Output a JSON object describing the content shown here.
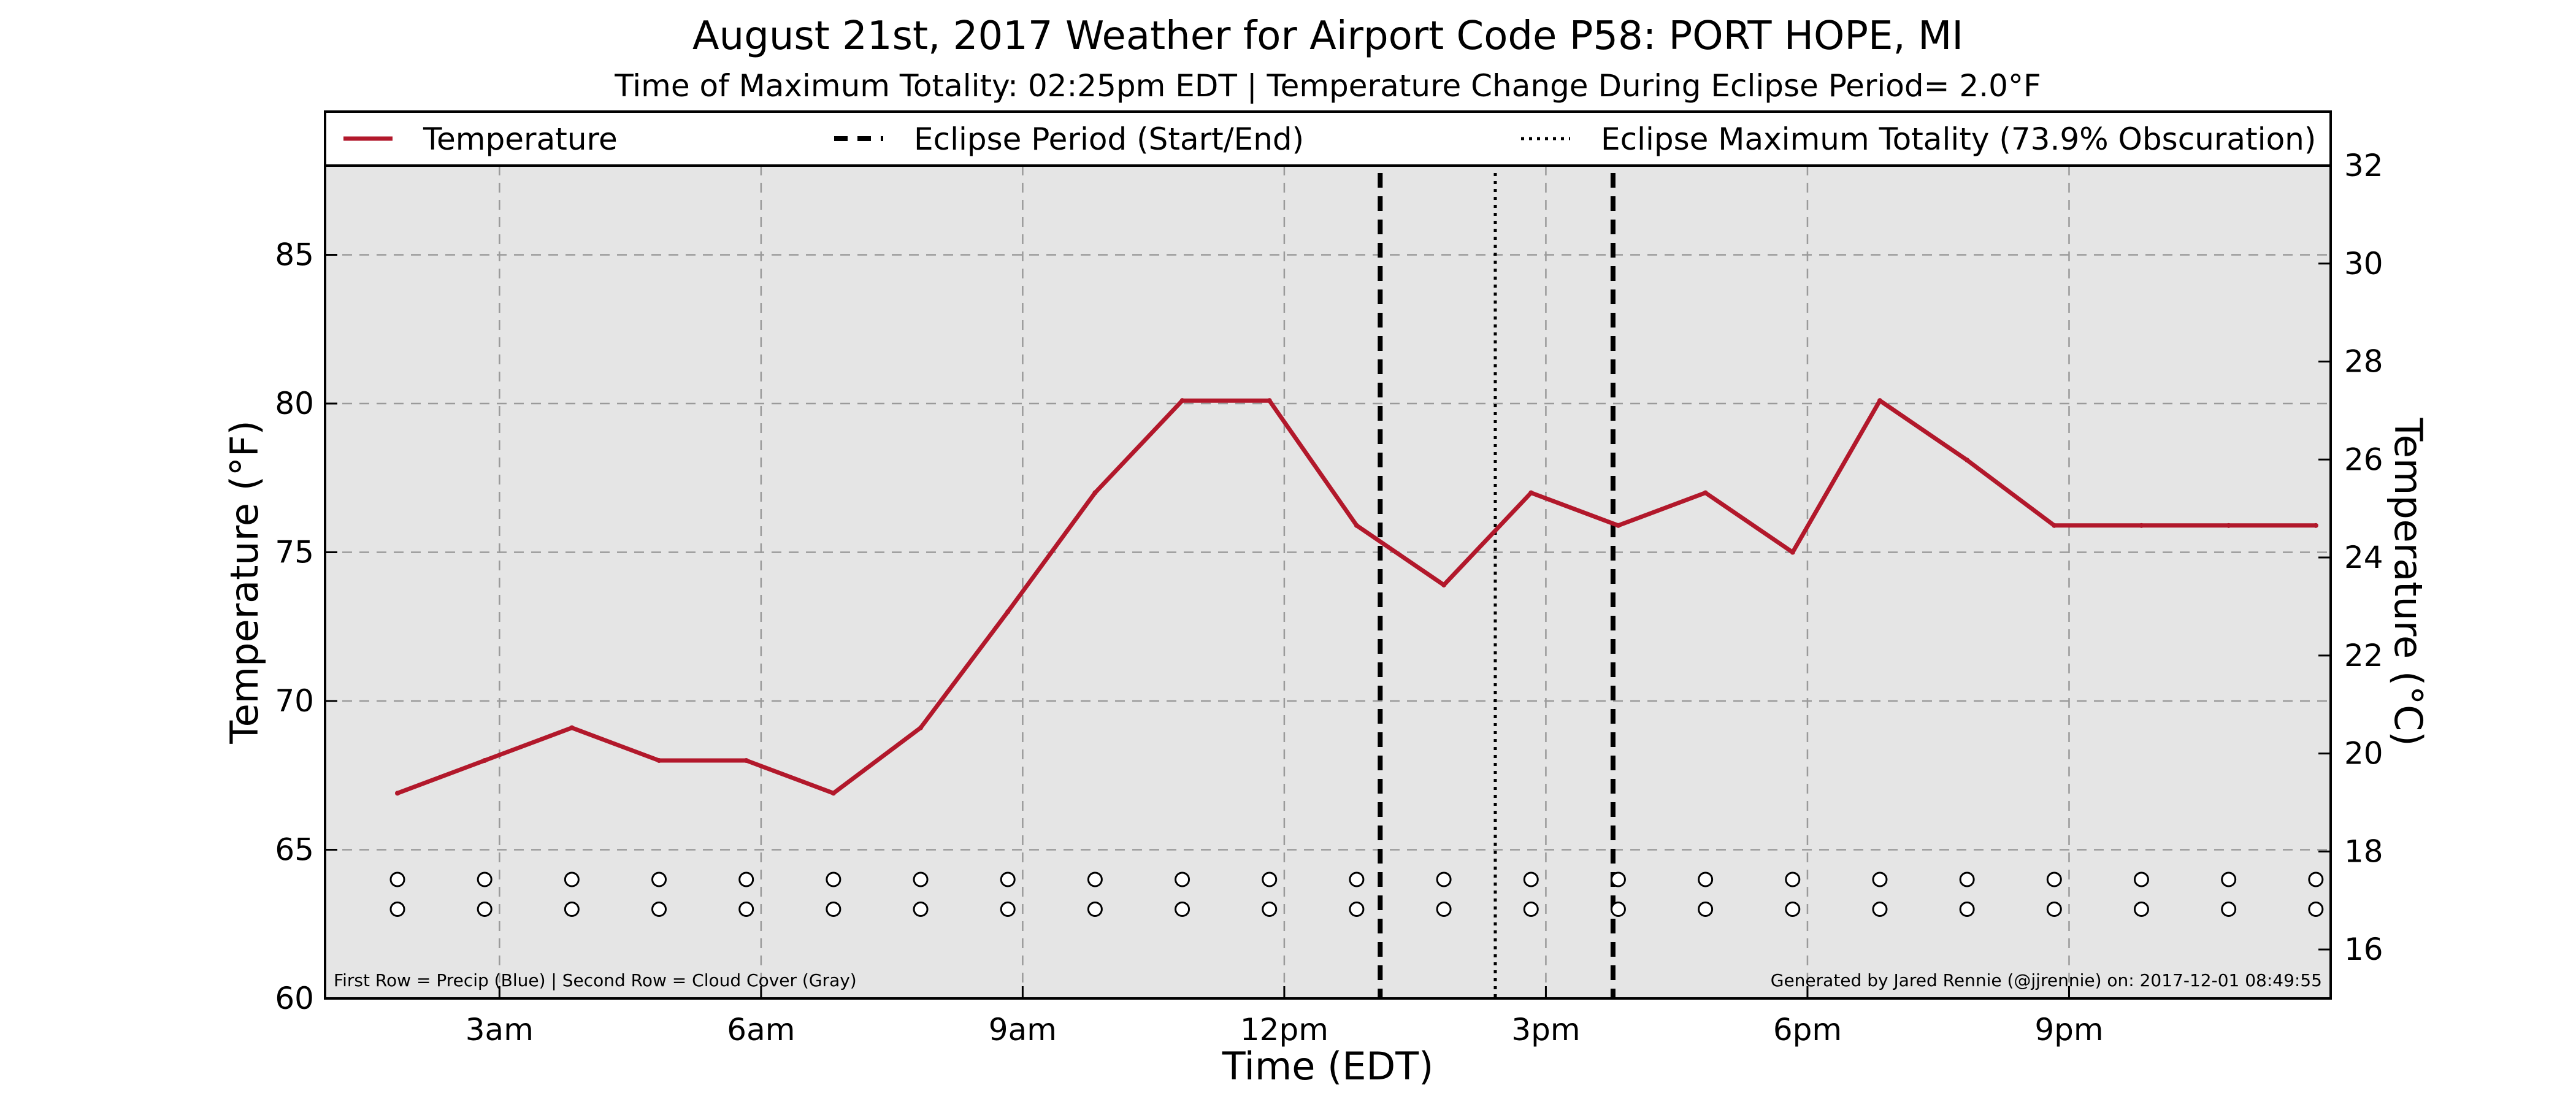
{
  "chart_data": {
    "type": "line",
    "title": "August 21st, 2017 Weather for Airport Code P58: PORT HOPE, MI",
    "subtitle": "Time of Maximum Totality: 02:25pm EDT | Temperature Change During Eclipse Period= 2.0°F",
    "xlabel": "Time (EDT)",
    "ylabel": "Temperature (°F)",
    "ylabel_right": "Temperature (°C)",
    "xlim": [
      1.0,
      24.0
    ],
    "ylim": [
      60,
      88
    ],
    "ylim_right": [
      15.0,
      32.0
    ],
    "x_ticks": [
      {
        "x": 3,
        "label": "3am"
      },
      {
        "x": 6,
        "label": "6am"
      },
      {
        "x": 9,
        "label": "9am"
      },
      {
        "x": 12,
        "label": "12pm"
      },
      {
        "x": 15,
        "label": "3pm"
      },
      {
        "x": 18,
        "label": "6pm"
      },
      {
        "x": 21,
        "label": "9pm"
      }
    ],
    "y_ticks": [
      60,
      65,
      70,
      75,
      80,
      85
    ],
    "y_ticks_right": [
      16,
      18,
      20,
      22,
      24,
      26,
      28,
      30,
      32
    ],
    "grid": true,
    "legend_position": "top",
    "series": [
      {
        "name": "Temperature",
        "color": "#b2182b",
        "x": [
          1.83,
          2.83,
          3.83,
          4.83,
          5.83,
          6.83,
          7.83,
          8.83,
          9.83,
          10.83,
          11.83,
          12.83,
          13.83,
          14.83,
          15.83,
          16.83,
          17.83,
          18.83,
          19.83,
          20.83,
          21.83,
          22.83,
          23.83
        ],
        "values": [
          66.9,
          68.0,
          69.1,
          68.0,
          68.0,
          66.9,
          69.1,
          73.0,
          77.0,
          80.1,
          80.1,
          75.9,
          73.9,
          77.0,
          75.9,
          77.0,
          75.0,
          80.1,
          78.1,
          75.9,
          75.9,
          75.9,
          75.9
        ]
      }
    ],
    "eclipse_period": {
      "name": "Eclipse Period (Start/End)",
      "start": 13.1,
      "end": 15.77
    },
    "eclipse_max": {
      "name": "Eclipse Maximum Totality (73.9% Obscuration)",
      "x": 14.42
    },
    "marker_rows": {
      "x": [
        1.83,
        2.83,
        3.83,
        4.83,
        5.83,
        6.83,
        7.83,
        8.83,
        9.83,
        10.83,
        11.83,
        12.83,
        13.83,
        14.83,
        15.83,
        16.83,
        17.83,
        18.83,
        19.83,
        20.83,
        21.83,
        22.83,
        23.83
      ],
      "row1_y": 64.0,
      "row2_y": 63.0
    },
    "footnote_left": "First Row = Precip (Blue) | Second Row = Cloud Cover (Gray)",
    "footnote_right": "Generated by Jared Rennie (@jjrennie) on: 2017-12-01 08:49:55",
    "colors": {
      "plot_background": "#e5e5e5",
      "grid": "#9a9a9a",
      "line": "#b2182b",
      "eclipse": "#000000"
    }
  }
}
